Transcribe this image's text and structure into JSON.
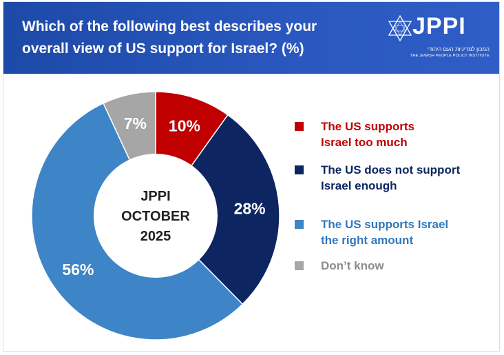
{
  "header": {
    "title": "Which of the following best describes your overall view of US support for Israel? (%)",
    "logo_text": "JPPI",
    "logo_subtitle_hebrew": "המכון למדיניות העם היהודי",
    "logo_subtitle_english": "THE JEWISH PEOPLE POLICY INSTITUTE",
    "background_color": "#2a58bf",
    "logo_icon": "star-of-david-icon"
  },
  "chart_data": {
    "type": "pie",
    "style": "donut",
    "title": "Which of the following best describes your overall view of US support for Israel? (%)",
    "center_label_lines": [
      "JPPI",
      "OCTOBER",
      "2025"
    ],
    "categories": [
      "The US supports Israel too much",
      "The US does not support Israel enough",
      "The US supports Israel the right amount",
      "Don’t know"
    ],
    "values": [
      10,
      28,
      56,
      7
    ],
    "data_labels": [
      "10%",
      "28%",
      "56%",
      "7%"
    ],
    "colors": [
      "#c00000",
      "#0d2561",
      "#3d85c6",
      "#a6a6a6"
    ],
    "legend_position": "right"
  },
  "legend": {
    "items": [
      {
        "label_line1": "The US supports",
        "label_line2": "Israel too much",
        "color": "#c00000",
        "text_color": "#c00000"
      },
      {
        "label_line1": "The US does not support",
        "label_line2": "Israel enough",
        "color": "#0d2561",
        "text_color": "#0d2561"
      },
      {
        "label_line1": "The US supports Israel",
        "label_line2": "the right amount",
        "color": "#3d85c6",
        "text_color": "#2f77bd"
      },
      {
        "label_line1": "Don’t know",
        "label_line2": "",
        "color": "#a6a6a6",
        "text_color": "#8c8c8c"
      }
    ]
  }
}
